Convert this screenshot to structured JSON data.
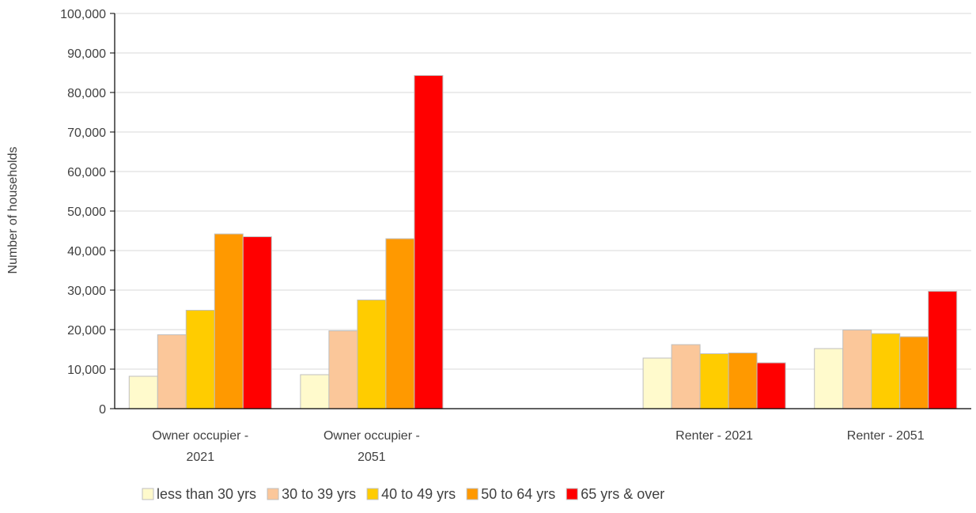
{
  "chart_data": {
    "type": "bar",
    "title": "",
    "xlabel": "",
    "ylabel": "Number of households",
    "ylim": [
      0,
      100000
    ],
    "yticks": [
      "0",
      "10,000",
      "20,000",
      "30,000",
      "40,000",
      "50,000",
      "60,000",
      "70,000",
      "80,000",
      "90,000",
      "100,000"
    ],
    "grid": true,
    "legend_position": "bottom",
    "categories": [
      {
        "lines": [
          "Owner occupier -",
          "2021"
        ]
      },
      {
        "lines": [
          "Owner occupier -",
          "2051"
        ]
      },
      {
        "lines": [
          ""
        ]
      },
      {
        "lines": [
          "Renter - 2021"
        ]
      },
      {
        "lines": [
          "Renter - 2051"
        ]
      }
    ],
    "series": [
      {
        "name": "less than 30 yrs",
        "color": "#FFFACC",
        "values": [
          8200,
          8600,
          null,
          12800,
          15200
        ]
      },
      {
        "name": "30 to 39 yrs",
        "color": "#FBC79A",
        "values": [
          18700,
          19700,
          null,
          16200,
          19900
        ]
      },
      {
        "name": "40 to 49 yrs",
        "color": "#FFCC00",
        "values": [
          24900,
          27500,
          null,
          13900,
          19000
        ]
      },
      {
        "name": "50 to 64 yrs",
        "color": "#FF9900",
        "values": [
          44200,
          43000,
          null,
          14100,
          18200
        ]
      },
      {
        "name": "65 yrs & over",
        "color": "#FF0000",
        "values": [
          43500,
          84300,
          null,
          11600,
          29700
        ]
      }
    ]
  }
}
